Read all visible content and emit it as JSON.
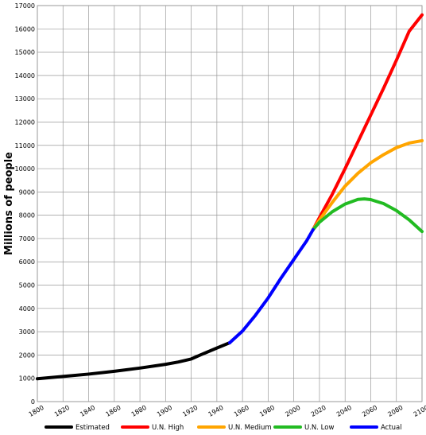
{
  "chart_data": {
    "type": "line",
    "title": "",
    "xlabel": "",
    "ylabel": "Millions of people",
    "xlim": [
      1800,
      2100
    ],
    "ylim": [
      0,
      17000
    ],
    "grid": true,
    "legend_position": "bottom",
    "x_ticks": [
      1800,
      1820,
      1840,
      1860,
      1880,
      1900,
      1920,
      1940,
      1960,
      1980,
      2000,
      2020,
      2040,
      2060,
      2080,
      2100
    ],
    "y_ticks": [
      0,
      1000,
      2000,
      3000,
      4000,
      5000,
      6000,
      7000,
      8000,
      9000,
      10000,
      11000,
      12000,
      13000,
      14000,
      15000,
      16000,
      17000
    ],
    "series": [
      {
        "name": "Estimated",
        "color": "#000000",
        "points": [
          [
            1800,
            980
          ],
          [
            1820,
            1080
          ],
          [
            1840,
            1180
          ],
          [
            1860,
            1300
          ],
          [
            1880,
            1440
          ],
          [
            1900,
            1600
          ],
          [
            1910,
            1700
          ],
          [
            1920,
            1830
          ],
          [
            1927,
            2000
          ],
          [
            1940,
            2300
          ],
          [
            1950,
            2525
          ]
        ]
      },
      {
        "name": "U.N. High",
        "color": "#ff0000",
        "points": [
          [
            2015,
            7380
          ],
          [
            2020,
            7900
          ],
          [
            2030,
            8900
          ],
          [
            2040,
            10000
          ],
          [
            2050,
            11150
          ],
          [
            2060,
            12300
          ],
          [
            2070,
            13450
          ],
          [
            2080,
            14650
          ],
          [
            2090,
            15900
          ],
          [
            2100,
            16600
          ]
        ]
      },
      {
        "name": "U.N. Medium",
        "color": "#ffa500",
        "points": [
          [
            2015,
            7380
          ],
          [
            2020,
            7800
          ],
          [
            2030,
            8550
          ],
          [
            2040,
            9250
          ],
          [
            2050,
            9800
          ],
          [
            2060,
            10250
          ],
          [
            2070,
            10600
          ],
          [
            2080,
            10900
          ],
          [
            2090,
            11100
          ],
          [
            2100,
            11200
          ]
        ]
      },
      {
        "name": "U.N. Low",
        "color": "#22bb22",
        "points": [
          [
            2015,
            7380
          ],
          [
            2020,
            7700
          ],
          [
            2030,
            8150
          ],
          [
            2040,
            8480
          ],
          [
            2050,
            8680
          ],
          [
            2055,
            8700
          ],
          [
            2060,
            8670
          ],
          [
            2070,
            8500
          ],
          [
            2080,
            8200
          ],
          [
            2090,
            7800
          ],
          [
            2100,
            7300
          ]
        ]
      },
      {
        "name": "Actual",
        "color": "#0000ff",
        "points": [
          [
            1950,
            2525
          ],
          [
            1960,
            3030
          ],
          [
            1970,
            3700
          ],
          [
            1980,
            4450
          ],
          [
            1990,
            5300
          ],
          [
            2000,
            6100
          ],
          [
            2010,
            6900
          ],
          [
            2015,
            7380
          ]
        ]
      }
    ]
  }
}
